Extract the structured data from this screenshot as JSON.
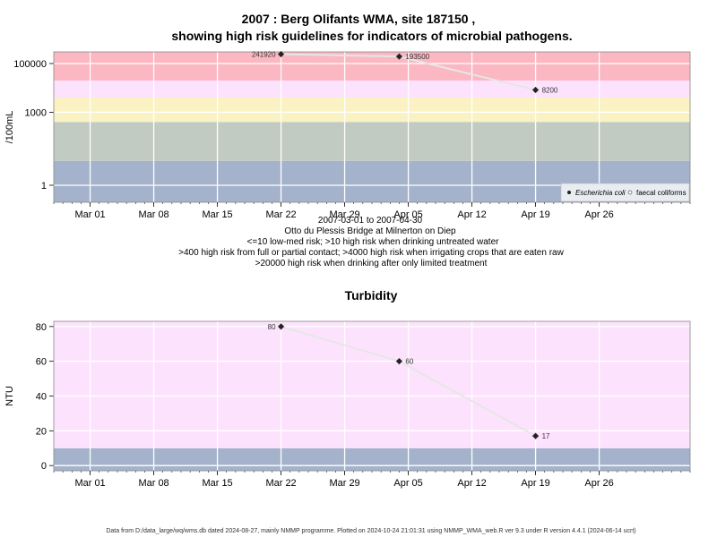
{
  "title_line1": "2007 : Berg Olifants WMA, site 187150 ,",
  "title_line2": "showing high risk guidelines for indicators of microbial pathogens.",
  "notes": [
    "2007-03-01 to 2007-04-30",
    "Otto du Plessis Bridge at Milnerton on Diep",
    "<=10 low-med risk; >10 high risk when drinking untreated water",
    ">400 high risk from full or partial contact; >4000 high risk when irrigating crops that are eaten raw",
    ">20000 high risk when drinking after only limited treatment"
  ],
  "footer": "Data from D:/data_large/wq/wms.db dated 2024-08-27, mainly NMMP programme. Plotted on 2024-10-24 21:01:31 using NMMP_WMA_web.R ver 9.3 under R version 4.4.1 (2024-06-14 ucrt)",
  "chart_data": [
    {
      "type": "line",
      "title": "",
      "ylabel": "/100mL",
      "yscale": "log",
      "ylim": [
        0.2,
        300000
      ],
      "xlim": [
        "2007-02-25",
        "2007-05-06"
      ],
      "x_ticks": [
        "Mar 01",
        "Mar 08",
        "Mar 15",
        "Mar 22",
        "Mar 29",
        "Apr 05",
        "Apr 12",
        "Apr 19",
        "Apr 26"
      ],
      "x_tick_dates": [
        "2007-03-01",
        "2007-03-08",
        "2007-03-15",
        "2007-03-22",
        "2007-03-29",
        "2007-04-05",
        "2007-04-12",
        "2007-04-19",
        "2007-04-26"
      ],
      "y_ticks": [
        1,
        1000,
        100000
      ],
      "y_tick_labels": [
        "1",
        "1000",
        "100000"
      ],
      "risk_bands": [
        {
          "from": 0.2,
          "to": 10,
          "color": "#a4b3cb"
        },
        {
          "from": 10,
          "to": 400,
          "color": "#c2cbc2"
        },
        {
          "from": 400,
          "to": 4000,
          "color": "#faf2c2"
        },
        {
          "from": 4000,
          "to": 20000,
          "color": "#fde2fd"
        },
        {
          "from": 20000,
          "to": 300000,
          "color": "#fbb7c2"
        }
      ],
      "legend": {
        "position": "bottom-right",
        "entries": [
          "Escherichia coli",
          "faecal coliforms"
        ]
      },
      "series": [
        {
          "name": "Escherichia coli",
          "x": [
            "2007-03-22",
            "2007-04-04",
            "2007-04-19"
          ],
          "y": [
            241920,
            193500,
            8200
          ],
          "labels": [
            "241920",
            "193500",
            "8200"
          ]
        }
      ]
    },
    {
      "type": "line",
      "title": "Turbidity",
      "ylabel": "NTU",
      "ylim": [
        -3,
        83
      ],
      "xlim": [
        "2007-02-25",
        "2007-05-06"
      ],
      "x_ticks": [
        "Mar 01",
        "Mar 08",
        "Mar 15",
        "Mar 22",
        "Mar 29",
        "Apr 05",
        "Apr 12",
        "Apr 19",
        "Apr 26"
      ],
      "x_tick_dates": [
        "2007-03-01",
        "2007-03-08",
        "2007-03-15",
        "2007-03-22",
        "2007-03-29",
        "2007-04-05",
        "2007-04-12",
        "2007-04-19",
        "2007-04-26"
      ],
      "y_ticks": [
        0,
        20,
        40,
        60,
        80
      ],
      "risk_bands": [
        {
          "from": -3,
          "to": 10,
          "color": "#a4b3cb"
        },
        {
          "from": 10,
          "to": 83,
          "color": "#fde2fd"
        }
      ],
      "series": [
        {
          "x": [
            "2007-03-22",
            "2007-04-04",
            "2007-04-19"
          ],
          "y": [
            80,
            60,
            17
          ],
          "labels": [
            "80",
            "60",
            "17"
          ]
        }
      ]
    }
  ]
}
